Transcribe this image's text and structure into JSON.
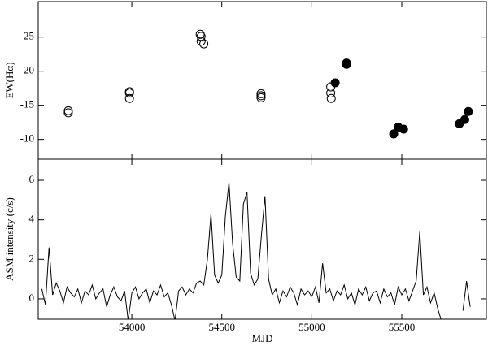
{
  "chart_data": [
    {
      "type": "scatter",
      "ylabel": "EW(Hα)",
      "xlim": [
        53480,
        55970
      ],
      "xticks": [
        54000,
        54500,
        55000,
        55500
      ],
      "ylim": [
        -7.1,
        -30.2
      ],
      "yticks": [
        -25,
        -20,
        -15,
        -10
      ],
      "series": [
        {
          "marker": "open",
          "color": "#000000",
          "x": [
            53647,
            53647,
            53987,
            53987,
            53987,
            54380,
            54385,
            54385,
            54400,
            54718,
            54718,
            54718,
            55105,
            55105,
            55108
          ],
          "values": [
            -14.2,
            -13.9,
            -17.0,
            -16.8,
            -16.0,
            -25.4,
            -25.1,
            -24.4,
            -24.0,
            -16.7,
            -16.4,
            -16.1,
            -17.7,
            -16.8,
            -16.0
          ]
        },
        {
          "marker": "filled",
          "color": "#000000",
          "x": [
            55130,
            55193,
            55193,
            55455,
            55480,
            55510,
            55820,
            55850,
            55870
          ],
          "values": [
            -18.3,
            -21.2,
            -21.0,
            -10.8,
            -11.8,
            -11.5,
            -12.3,
            -12.9,
            -14.1
          ]
        }
      ]
    },
    {
      "type": "line",
      "xlabel": "MJD",
      "ylabel": "ASM intensity (c/s)",
      "xlim": [
        53480,
        55970
      ],
      "xticks": [
        54000,
        54500,
        55000,
        55500
      ],
      "ylim": [
        -1.03,
        7.07
      ],
      "yticks": [
        0,
        2,
        4,
        6
      ],
      "color": "#000000",
      "x": [
        53500,
        53520,
        53540,
        53560,
        53580,
        53600,
        53620,
        53640,
        53660,
        53680,
        53700,
        53720,
        53740,
        53760,
        53780,
        53800,
        53820,
        53840,
        53860,
        53880,
        53900,
        53920,
        53940,
        53960,
        53980,
        54000,
        54020,
        54040,
        54060,
        54080,
        54100,
        54120,
        54140,
        54160,
        54180,
        54200,
        54220,
        54240,
        54260,
        54280,
        54300,
        54320,
        54340,
        54360,
        54380,
        54400,
        54420,
        54440,
        54460,
        54480,
        54500,
        54520,
        54540,
        54560,
        54580,
        54600,
        54620,
        54640,
        54660,
        54680,
        54700,
        54720,
        54740,
        54760,
        54780,
        54800,
        54820,
        54840,
        54860,
        54880,
        54900,
        54920,
        54940,
        54960,
        54980,
        55000,
        55020,
        55040,
        55060,
        55080,
        55100,
        55120,
        55140,
        55160,
        55180,
        55200,
        55220,
        55240,
        55260,
        55280,
        55300,
        55320,
        55340,
        55360,
        55380,
        55400,
        55420,
        55440,
        55460,
        55480,
        55500,
        55520,
        55540,
        55560,
        55580,
        55600,
        55620,
        55640,
        55660,
        55680,
        55700,
        55720,
        55740,
        55760,
        55780,
        55800,
        55820,
        55840,
        55860,
        55880
      ],
      "values": [
        0.5,
        -0.3,
        2.6,
        0.2,
        0.8,
        0.4,
        -0.2,
        0.6,
        0.3,
        0.1,
        0.5,
        -0.2,
        0.4,
        0.2,
        0.7,
        0.0,
        0.3,
        0.5,
        -0.4,
        0.2,
        0.6,
        0.1,
        -0.1,
        0.4,
        -1.1,
        0.3,
        0.6,
        0.0,
        0.3,
        0.5,
        -0.2,
        0.4,
        0.2,
        0.7,
        0.1,
        0.3,
        -0.3,
        -1.1,
        0.4,
        0.6,
        0.2,
        0.5,
        0.3,
        0.8,
        0.9,
        0.7,
        2.0,
        4.3,
        1.2,
        0.8,
        1.2,
        4.2,
        5.9,
        2.8,
        1.1,
        0.9,
        4.8,
        5.4,
        1.3,
        0.7,
        1.0,
        3.2,
        5.2,
        1.0,
        0.2,
        0.5,
        -0.2,
        0.4,
        0.1,
        0.6,
        0.3,
        -0.3,
        0.5,
        0.2,
        0.4,
        0.1,
        0.6,
        -0.2,
        1.8,
        0.3,
        0.5,
        -0.1,
        0.4,
        0.2,
        0.7,
        0.0,
        0.3,
        -0.3,
        0.5,
        0.2,
        0.6,
        -0.1,
        0.3,
        0.4,
        -0.2,
        0.5,
        0.1,
        0.3,
        -0.3,
        0.6,
        0.2,
        0.5,
        -0.1,
        0.4,
        0.9,
        3.4,
        0.2,
        0.6,
        -0.2,
        0.3,
        -0.5,
        -1.1,
        null,
        null,
        null,
        null,
        null,
        -0.6,
        0.9,
        -0.4
      ]
    }
  ]
}
